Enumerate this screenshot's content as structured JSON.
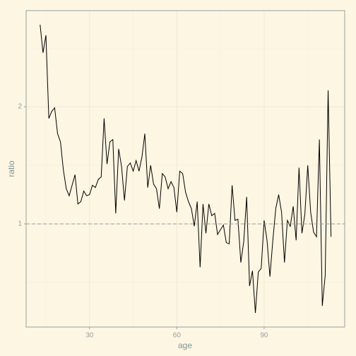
{
  "chart_data": {
    "type": "line",
    "xlabel": "age",
    "ylabel": "ratio",
    "x": [
      13,
      14,
      15,
      16,
      17,
      18,
      19,
      20,
      21,
      22,
      23,
      24,
      25,
      26,
      27,
      28,
      29,
      30,
      31,
      32,
      33,
      34,
      35,
      36,
      37,
      38,
      39,
      40,
      41,
      42,
      43,
      44,
      45,
      46,
      47,
      48,
      49,
      50,
      51,
      52,
      53,
      54,
      55,
      56,
      57,
      58,
      59,
      60,
      61,
      62,
      63,
      64,
      65,
      66,
      67,
      68,
      69,
      70,
      71,
      72,
      73,
      74,
      75,
      76,
      77,
      78,
      79,
      80,
      81,
      82,
      83,
      84,
      85,
      86,
      87,
      88,
      89,
      90,
      91,
      92,
      93,
      94,
      95,
      96,
      97,
      98,
      99,
      100,
      101,
      102,
      103,
      104,
      105,
      106,
      107,
      108,
      109,
      110,
      111,
      112,
      113
    ],
    "series": [
      {
        "color": "#000000",
        "values": [
          2.7,
          2.46,
          2.61,
          1.9,
          1.96,
          1.99,
          1.77,
          1.7,
          1.46,
          1.3,
          1.24,
          1.33,
          1.42,
          1.17,
          1.19,
          1.28,
          1.24,
          1.25,
          1.33,
          1.31,
          1.38,
          1.4,
          1.9,
          1.51,
          1.7,
          1.72,
          1.09,
          1.64,
          1.49,
          1.2,
          1.49,
          1.52,
          1.45,
          1.54,
          1.45,
          1.57,
          1.77,
          1.31,
          1.5,
          1.34,
          1.3,
          1.13,
          1.43,
          1.4,
          1.3,
          1.36,
          1.31,
          1.1,
          1.45,
          1.43,
          1.27,
          1.19,
          1.13,
          0.98,
          1.19,
          0.63,
          1.17,
          0.92,
          1.17,
          1.07,
          1.09,
          0.91,
          0.95,
          0.99,
          0.84,
          0.83,
          1.33,
          1.03,
          1.04,
          0.67,
          0.85,
          1.23,
          0.47,
          0.6,
          0.24,
          0.59,
          0.62,
          1.03,
          0.86,
          0.55,
          0.86,
          1.13,
          1.25,
          1.1,
          0.67,
          1.03,
          0.98,
          1.15,
          0.86,
          1.48,
          0.92,
          1.08,
          1.5,
          1.1,
          0.93,
          0.89,
          1.72,
          0.3,
          0.56,
          2.14,
          0.89
        ]
      }
    ],
    "xlim": [
      8.2,
      117.7
    ],
    "ylim": [
      0.12,
      2.82
    ],
    "xticks": [
      30,
      60,
      90
    ],
    "yticks": [
      1,
      2
    ],
    "xminor": [
      15,
      45,
      75,
      105
    ],
    "yminor": [
      0.5,
      1.5,
      2.5
    ],
    "hline": 1,
    "grid": true
  }
}
